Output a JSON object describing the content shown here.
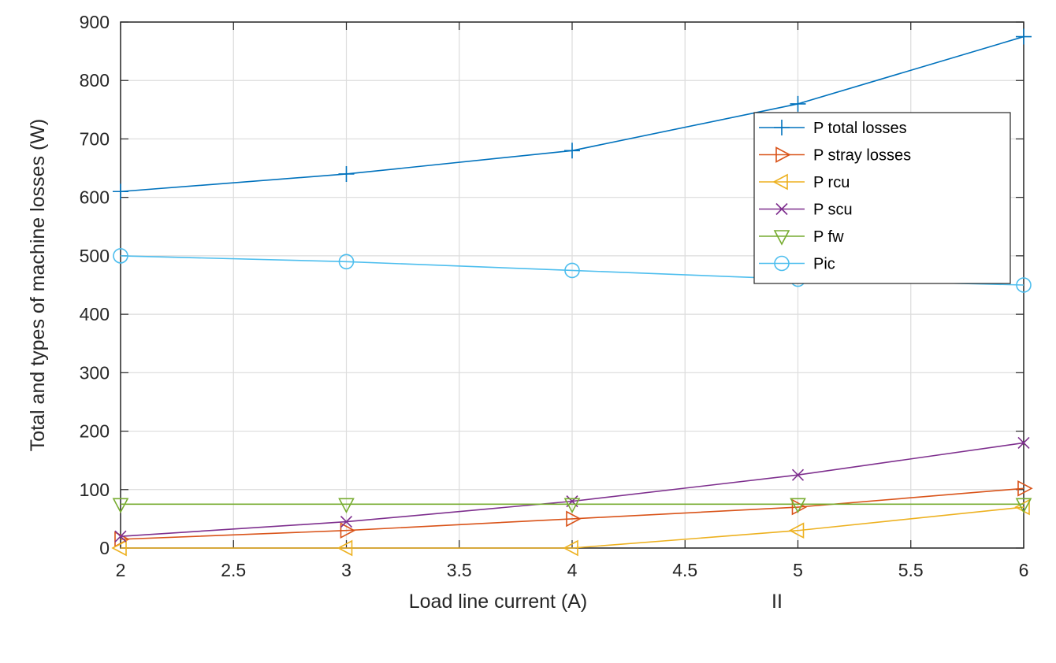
{
  "chart_data": {
    "type": "line",
    "xlabel": "Load line current (A)",
    "ylabel": "Total and types of machine losses (W)",
    "annotation": "II",
    "xlim": [
      2,
      6
    ],
    "ylim": [
      0,
      900
    ],
    "xticks": [
      2,
      2.5,
      3,
      3.5,
      4,
      4.5,
      5,
      5.5,
      6
    ],
    "xtick_labels": [
      "2",
      "2.5",
      "3",
      "3.5",
      "4",
      "4.5",
      "5",
      "5.5",
      "6"
    ],
    "yticks": [
      0,
      100,
      200,
      300,
      400,
      500,
      600,
      700,
      800,
      900
    ],
    "ytick_labels": [
      "0",
      "100",
      "200",
      "300",
      "400",
      "500",
      "600",
      "700",
      "800",
      "900"
    ],
    "grid": true,
    "legend_position": "top-right",
    "x": [
      2,
      3,
      4,
      5,
      6
    ],
    "series": [
      {
        "name": "P total losses",
        "values": [
          610,
          640,
          680,
          760,
          875
        ],
        "color": "#0072BD",
        "marker": "plus"
      },
      {
        "name": "P stray losses",
        "values": [
          15,
          30,
          50,
          70,
          102
        ],
        "color": "#D95319",
        "marker": "triangle-right"
      },
      {
        "name": "P rcu",
        "values": [
          0,
          0,
          0,
          30,
          70
        ],
        "color": "#EDB120",
        "marker": "triangle-left"
      },
      {
        "name": "P scu",
        "values": [
          20,
          45,
          80,
          125,
          180
        ],
        "color": "#7E2F8E",
        "marker": "x"
      },
      {
        "name": "P fw",
        "values": [
          75,
          75,
          75,
          75,
          75
        ],
        "color": "#77AC30",
        "marker": "triangle-down"
      },
      {
        "name": "Pic",
        "values": [
          500,
          490,
          475,
          460,
          450
        ],
        "color": "#4DBEEE",
        "marker": "circle"
      }
    ]
  }
}
